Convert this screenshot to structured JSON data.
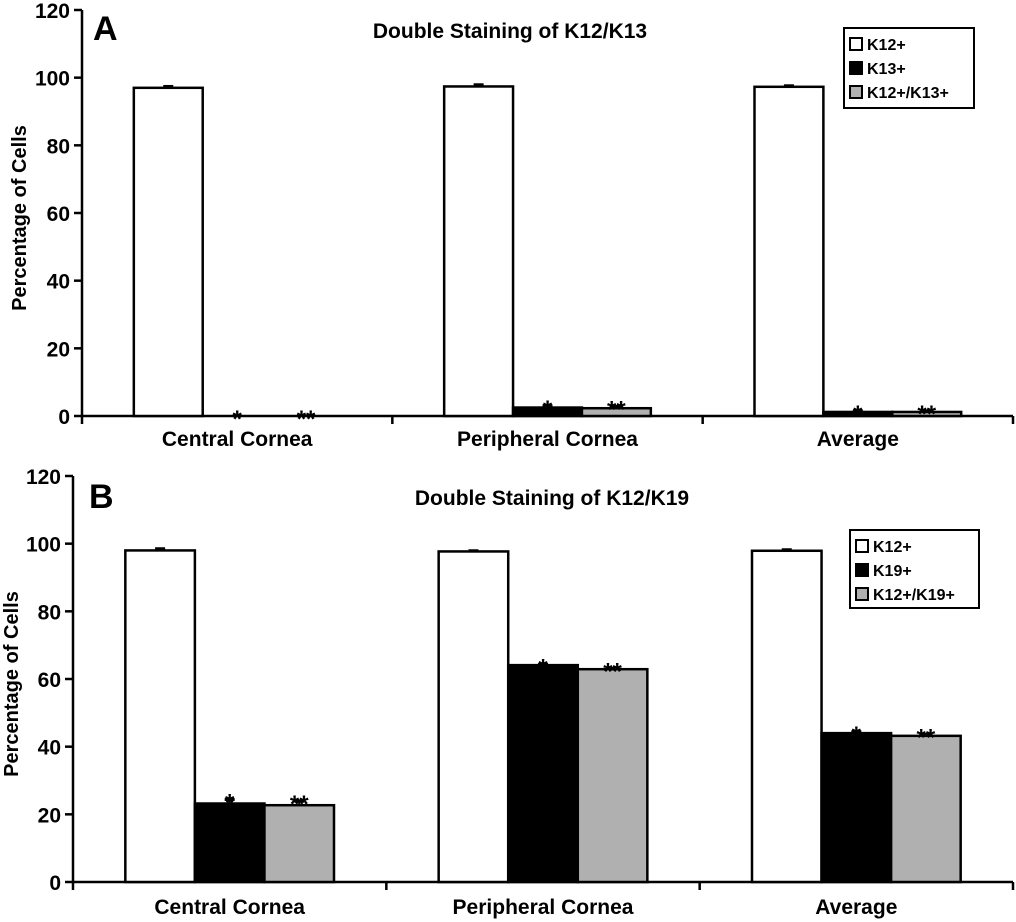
{
  "chart_data": [
    {
      "type": "bar",
      "panel": "A",
      "title": "Double Staining of K12/K13",
      "xlabel": "",
      "ylabel": "Percentage of Cells",
      "ylim": [
        0,
        120
      ],
      "yticks": [
        "0",
        "20",
        "40",
        "60",
        "80",
        "100",
        "120"
      ],
      "grid": false,
      "legend_position": "top-right",
      "categories": [
        "Central Cornea",
        "Peripheral Cornea",
        "Average"
      ],
      "series": [
        {
          "name": "K12+",
          "color": "#ffffff",
          "values": [
            97.0,
            97.4,
            97.3
          ],
          "errors": [
            0.4,
            0.5,
            0.3
          ]
        },
        {
          "name": "K13+",
          "color": "#000000",
          "values": [
            0.0,
            2.5,
            1.2
          ],
          "errors": [
            0,
            0.5,
            0.3
          ]
        },
        {
          "name": "K12+/K13+",
          "color": "#b0b0b0",
          "values": [
            0.0,
            2.3,
            1.2
          ],
          "errors": [
            0,
            0.5,
            0.3
          ]
        }
      ],
      "annotations": [
        {
          "category": "Central Cornea",
          "series": "K13+",
          "text": "*"
        },
        {
          "category": "Central Cornea",
          "series": "K12+/K13+",
          "text": "**"
        },
        {
          "category": "Peripheral Cornea",
          "series": "K13+",
          "text": "*"
        },
        {
          "category": "Peripheral Cornea",
          "series": "K12+/K13+",
          "text": "**"
        },
        {
          "category": "Average",
          "series": "K13+",
          "text": "*"
        },
        {
          "category": "Average",
          "series": "K12+/K13+",
          "text": "**"
        }
      ]
    },
    {
      "type": "bar",
      "panel": "B",
      "title": "Double Staining of K12/K19",
      "xlabel": "",
      "ylabel": "Percentage of Cells",
      "ylim": [
        0,
        120
      ],
      "yticks": [
        "0",
        "20",
        "40",
        "60",
        "80",
        "100",
        "120"
      ],
      "grid": false,
      "legend_position": "top-right",
      "categories": [
        "Central Cornea",
        "Peripheral Cornea",
        "Average"
      ],
      "series": [
        {
          "name": "K12+",
          "color": "#ffffff",
          "values": [
            98.0,
            97.7,
            97.9
          ],
          "errors": [
            0.5,
            0.2,
            0.3
          ]
        },
        {
          "name": "K19+",
          "color": "#000000",
          "values": [
            23.2,
            64.1,
            44.0
          ],
          "errors": [
            1.2,
            0.2,
            0.4
          ]
        },
        {
          "name": "K12+/K19+",
          "color": "#b0b0b0",
          "values": [
            22.7,
            62.9,
            43.2
          ],
          "errors": [
            1.2,
            0.2,
            0.4
          ]
        }
      ],
      "annotations": [
        {
          "category": "Central Cornea",
          "series": "K19+",
          "text": "*"
        },
        {
          "category": "Central Cornea",
          "series": "K12+/K19+",
          "text": "**"
        },
        {
          "category": "Peripheral Cornea",
          "series": "K19+",
          "text": "*"
        },
        {
          "category": "Peripheral Cornea",
          "series": "K12+/K19+",
          "text": "**"
        },
        {
          "category": "Average",
          "series": "K19+",
          "text": "*"
        },
        {
          "category": "Average",
          "series": "K12+/K19+",
          "text": "**"
        }
      ]
    }
  ]
}
